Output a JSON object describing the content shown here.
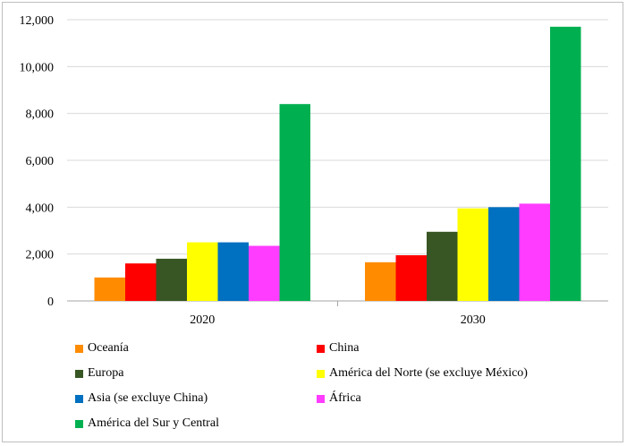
{
  "chart_data": {
    "type": "bar",
    "title": "",
    "xlabel": "",
    "ylabel": "",
    "categories": [
      "2020",
      "2030"
    ],
    "ylim": [
      0,
      12000
    ],
    "yticks": [
      "0",
      "2,000",
      "4,000",
      "6,000",
      "8,000",
      "10,000",
      "12,000"
    ],
    "grid": "horizontal",
    "legend_position": "bottom",
    "series": [
      {
        "name": "Oceanía",
        "color": "#ff8c00",
        "values": [
          1000,
          1650
        ]
      },
      {
        "name": "China",
        "color": "#ff0000",
        "values": [
          1600,
          1950
        ]
      },
      {
        "name": "Europa",
        "color": "#375623",
        "values": [
          1800,
          2950
        ]
      },
      {
        "name": "América del Norte (se excluye México)",
        "color": "#ffff00",
        "values": [
          2500,
          3950
        ]
      },
      {
        "name": "Asia (se excluye China)",
        "color": "#0070c0",
        "values": [
          2500,
          4000
        ]
      },
      {
        "name": "África",
        "color": "#ff3cff",
        "values": [
          2350,
          4150
        ]
      },
      {
        "name": "América del Sur y Central",
        "color": "#00b050",
        "values": [
          8400,
          11700
        ]
      }
    ]
  }
}
